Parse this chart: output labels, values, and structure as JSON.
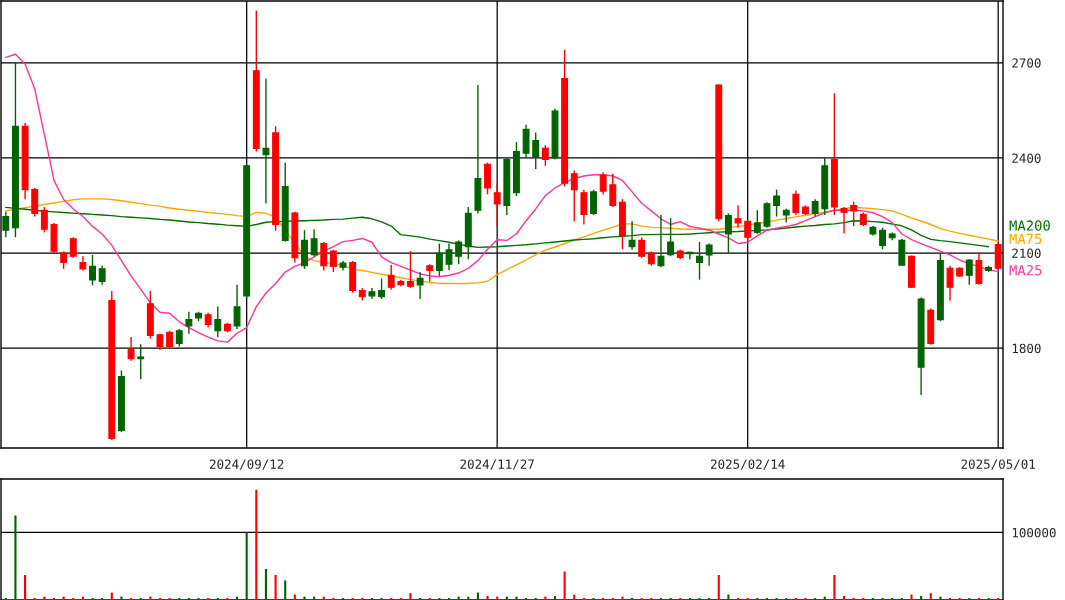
{
  "chart_data": [
    {
      "type": "candlestick",
      "categories": [
        null,
        null,
        null,
        null,
        null,
        null,
        null,
        null,
        null,
        null,
        null,
        null,
        null,
        null,
        null,
        null,
        null,
        null,
        null,
        null,
        null,
        null,
        null,
        null,
        null,
        "2024/09/12",
        null,
        null,
        null,
        null,
        null,
        null,
        null,
        null,
        null,
        null,
        null,
        null,
        null,
        null,
        null,
        null,
        null,
        null,
        null,
        null,
        null,
        null,
        null,
        null,
        null,
        "2024/11/27",
        null,
        null,
        null,
        null,
        null,
        null,
        null,
        null,
        null,
        null,
        null,
        null,
        null,
        null,
        null,
        null,
        null,
        null,
        null,
        null,
        null,
        null,
        null,
        null,
        null,
        "2025/02/14",
        null,
        null,
        null,
        null,
        null,
        null,
        null,
        null,
        null,
        null,
        null,
        null,
        null,
        null,
        null,
        null,
        null,
        null,
        null,
        null,
        null,
        null,
        null,
        null,
        null,
        "2025/05/01"
      ],
      "ohlc": [
        [
          2172,
          2230,
          2150,
          2215
        ],
        [
          2180,
          2700,
          2150,
          2500
        ],
        [
          2500,
          2510,
          2270,
          2300
        ],
        [
          2300,
          2305,
          2215,
          2225
        ],
        [
          2235,
          2245,
          2165,
          2175
        ],
        [
          2190,
          2195,
          2100,
          2106
        ],
        [
          2100,
          2105,
          2050,
          2070
        ],
        [
          2145,
          2150,
          2085,
          2090
        ],
        [
          2070,
          2090,
          2045,
          2050
        ],
        [
          2015,
          2094,
          1998,
          2058
        ],
        [
          2010,
          2060,
          2000,
          2050
        ],
        [
          1950,
          1980,
          1510,
          1515
        ],
        [
          1540,
          1730,
          1535,
          1710
        ],
        [
          1797,
          1835,
          1760,
          1767
        ],
        [
          1767,
          1812,
          1702,
          1772
        ],
        [
          1940,
          1980,
          1830,
          1840
        ],
        [
          1842,
          1845,
          1795,
          1805
        ],
        [
          1850,
          1855,
          1800,
          1805
        ],
        [
          1815,
          1860,
          1805,
          1855
        ],
        [
          1870,
          1915,
          1845,
          1890
        ],
        [
          1895,
          1915,
          1885,
          1910
        ],
        [
          1905,
          1912,
          1865,
          1875
        ],
        [
          1855,
          1931,
          1835,
          1890
        ],
        [
          1875,
          1880,
          1850,
          1855
        ],
        [
          1870,
          2000,
          1860,
          1930
        ],
        [
          1965,
          2380,
          1960,
          2375
        ],
        [
          2675,
          2865,
          2420,
          2430
        ],
        [
          2410,
          2650,
          2257,
          2430
        ],
        [
          2479,
          2500,
          2170,
          2190
        ],
        [
          2140,
          2385,
          2136,
          2310
        ],
        [
          2226,
          2230,
          2070,
          2085
        ],
        [
          2060,
          2172,
          2050,
          2140
        ],
        [
          2095,
          2175,
          2090,
          2145
        ],
        [
          2130,
          2135,
          2045,
          2060
        ],
        [
          2106,
          2110,
          2040,
          2058
        ],
        [
          2055,
          2075,
          2045,
          2068
        ],
        [
          2070,
          2075,
          1975,
          1982
        ],
        [
          1982,
          1990,
          1950,
          1962
        ],
        [
          1965,
          1990,
          1955,
          1978
        ],
        [
          1962,
          2020,
          1955,
          1982
        ],
        [
          2030,
          2063,
          1985,
          1992
        ],
        [
          2010,
          2015,
          1995,
          2000
        ],
        [
          2010,
          2106,
          1990,
          1995
        ],
        [
          1999,
          2040,
          1955,
          2020
        ],
        [
          2060,
          2065,
          2010,
          2045
        ],
        [
          2045,
          2130,
          2028,
          2100
        ],
        [
          2065,
          2130,
          2046,
          2110
        ],
        [
          2090,
          2140,
          2065,
          2135
        ],
        [
          2120,
          2245,
          2080,
          2225
        ],
        [
          2235,
          2630,
          2225,
          2335
        ],
        [
          2380,
          2385,
          2285,
          2305
        ],
        [
          2290,
          2320,
          2184,
          2255
        ],
        [
          2250,
          2400,
          2220,
          2395
        ],
        [
          2290,
          2450,
          2280,
          2420
        ],
        [
          2415,
          2505,
          2400,
          2490
        ],
        [
          2405,
          2480,
          2365,
          2455
        ],
        [
          2430,
          2440,
          2375,
          2395
        ],
        [
          2400,
          2555,
          2395,
          2548
        ],
        [
          2650,
          2741,
          2310,
          2320
        ],
        [
          2350,
          2360,
          2200,
          2300
        ],
        [
          2290,
          2300,
          2190,
          2222
        ],
        [
          2225,
          2300,
          2220,
          2293
        ],
        [
          2345,
          2355,
          2285,
          2295
        ],
        [
          2315,
          2350,
          2245,
          2250
        ],
        [
          2260,
          2270,
          2112,
          2155
        ],
        [
          2120,
          2200,
          2110,
          2140
        ],
        [
          2140,
          2150,
          2085,
          2090
        ],
        [
          2100,
          2105,
          2060,
          2066
        ],
        [
          2060,
          2220,
          2055,
          2090
        ],
        [
          2095,
          2210,
          2090,
          2135
        ],
        [
          2106,
          2110,
          2080,
          2086
        ],
        [
          2098,
          2104,
          2080,
          2102
        ],
        [
          2070,
          2135,
          2016,
          2090
        ],
        [
          2094,
          2130,
          2060,
          2125
        ],
        [
          2630,
          2632,
          2200,
          2208
        ],
        [
          2160,
          2225,
          2100,
          2218
        ],
        [
          2208,
          2250,
          2180,
          2195
        ],
        [
          2200,
          2205,
          2137,
          2150
        ],
        [
          2165,
          2235,
          2160,
          2195
        ],
        [
          2185,
          2260,
          2180,
          2255
        ],
        [
          2250,
          2300,
          2215,
          2280
        ],
        [
          2220,
          2240,
          2196,
          2235
        ],
        [
          2285,
          2297,
          2220,
          2228
        ],
        [
          2245,
          2250,
          2220,
          2225
        ],
        [
          2225,
          2270,
          2215,
          2262
        ],
        [
          2240,
          2400,
          2220,
          2375
        ],
        [
          2395,
          2604,
          2220,
          2245
        ],
        [
          2240,
          2245,
          2162,
          2228
        ],
        [
          2250,
          2262,
          2185,
          2233
        ],
        [
          2222,
          2228,
          2185,
          2190
        ],
        [
          2160,
          2185,
          2155,
          2181
        ],
        [
          2124,
          2180,
          2112,
          2172
        ],
        [
          2148,
          2165,
          2140,
          2160
        ],
        [
          2062,
          2145,
          2060,
          2140
        ],
        [
          2090,
          2092,
          1990,
          1992
        ],
        [
          1740,
          1960,
          1652,
          1955
        ],
        [
          1919,
          1925,
          1811,
          1815
        ],
        [
          1890,
          2100,
          1885,
          2076
        ],
        [
          2052,
          2060,
          1950,
          1992
        ],
        [
          2052,
          2055,
          2025,
          2028
        ],
        [
          2030,
          2080,
          2000,
          2078
        ],
        [
          2076,
          2100,
          2000,
          2004
        ],
        [
          2045,
          2060,
          2040,
          2054
        ],
        [
          2127,
          2130,
          2050,
          2052
        ]
      ],
      "colors": [
        "#006400",
        "#006400",
        "#ff0000",
        "#ff0000",
        "#ff0000",
        "#ff0000",
        "#ff0000",
        "#ff0000",
        "#ff0000",
        "#006400",
        "#006400",
        "#ff0000",
        "#006400",
        "#ff0000",
        "#006400",
        "#ff0000",
        "#ff0000",
        "#ff0000",
        "#006400",
        "#006400",
        "#006400",
        "#ff0000",
        "#006400",
        "#ff0000",
        "#006400",
        "#006400",
        "#ff0000",
        "#006400",
        "#ff0000",
        "#006400",
        "#ff0000",
        "#006400",
        "#006400",
        "#ff0000",
        "#ff0000",
        "#006400",
        "#ff0000",
        "#ff0000",
        "#006400",
        "#006400",
        "#ff0000",
        "#ff0000",
        "#ff0000",
        "#006400",
        "#ff0000",
        "#006400",
        "#006400",
        "#006400",
        "#006400",
        "#006400",
        "#ff0000",
        "#ff0000",
        "#006400",
        "#006400",
        "#006400",
        "#006400",
        "#ff0000",
        "#006400",
        "#ff0000",
        "#ff0000",
        "#ff0000",
        "#006400",
        "#ff0000",
        "#ff0000",
        "#ff0000",
        "#006400",
        "#ff0000",
        "#ff0000",
        "#006400",
        "#006400",
        "#ff0000",
        "#006400",
        "#006400",
        "#006400",
        "#ff0000",
        "#006400",
        "#ff0000",
        "#ff0000",
        "#006400",
        "#006400",
        "#006400",
        "#006400",
        "#ff0000",
        "#ff0000",
        "#006400",
        "#006400",
        "#ff0000",
        "#ff0000",
        "#ff0000",
        "#ff0000",
        "#006400",
        "#006400",
        "#006400",
        "#006400",
        "#ff0000",
        "#006400",
        "#ff0000",
        "#006400",
        "#ff0000",
        "#ff0000",
        "#006400",
        "#ff0000",
        "#006400",
        "#ff0000"
      ],
      "series": [
        {
          "name": "MA75",
          "type": "line",
          "color": "#ffa500",
          "values": [
            2233,
            2238,
            2243,
            2248,
            2253,
            2258,
            2263,
            2268,
            2271,
            2271,
            2271,
            2269,
            2265,
            2260,
            2256,
            2251,
            2247,
            2242,
            2238,
            2235,
            2232,
            2228,
            2225,
            2222,
            2218,
            2215,
            2228,
            2225,
            2213,
            null,
            null,
            2090,
            2076,
            2071,
            2067,
            2060,
            2050,
            2045,
            2039,
            2033,
            2028,
            2022,
            2016,
            2012,
            2007,
            2004,
            2004,
            2004,
            2004,
            2006,
            2011,
            2032,
            2048,
            2063,
            2078,
            2095,
            2109,
            2119,
            2130,
            2141,
            2151,
            2162,
            2172,
            2181,
            2192,
            2192,
            2185,
            2181,
            2180,
            2178,
            2176,
            2175,
            2175,
            2175,
            2175,
            2179,
            2184,
            2188,
            2193,
            2198,
            2204,
            2209,
            2214,
            2219,
            2224,
            2229,
            2235,
            2240,
            2245,
            2242,
            2240,
            2237,
            2233,
            2222,
            2211,
            2201,
            2190,
            2177,
            2169,
            2162,
            2156,
            2150,
            2144,
            2138
          ]
        },
        {
          "name": "MA200",
          "type": "line",
          "color": "#007000",
          "values": [
            2244,
            2241,
            2238,
            2235,
            2232,
            2230,
            2228,
            2226,
            2224,
            2222,
            2220,
            2218,
            2215,
            2213,
            2211,
            2209,
            2206,
            2204,
            2201,
            2198,
            2196,
            2193,
            2191,
            2188,
            2186,
            2184,
            2190,
            2197,
            2199,
            2200,
            2201,
            2202,
            2203,
            2204,
            2206,
            2207,
            2210,
            2213,
            2208,
            2198,
            2185,
            2158,
            2154,
            2150,
            2144,
            2139,
            2134,
            2128,
            2122,
            2118,
            2119,
            2120,
            2122,
            2124,
            2126,
            2129,
            2132,
            2135,
            2138,
            2141,
            2143,
            2145,
            2148,
            2151,
            2153,
            2155,
            2158,
            2158,
            2159,
            2159,
            2159,
            2160,
            2162,
            2164,
            2166,
            2167,
            2168,
            2170,
            2171,
            2173,
            2176,
            2179,
            2182,
            2185,
            2187,
            2190,
            2192,
            2196,
            2202,
            2201,
            2199,
            2197,
            2191,
            2186,
            2173,
            2156,
            2143,
            2139,
            2136,
            2132,
            2128,
            2124,
            2120,
            null
          ]
        },
        {
          "name": "MA25",
          "type": "line",
          "color": "#ff3399",
          "values": [
            2717,
            2727,
            2696,
            2618,
            2474,
            2329,
            2269,
            2239,
            2215,
            2184,
            2160,
            2124,
            2076,
            2028,
            1986,
            1943,
            1913,
            1910,
            1883,
            1865,
            1849,
            1835,
            1823,
            1819,
            1847,
            1865,
            1931,
            1974,
            2004,
            2040,
            2058,
            2070,
            2088,
            2106,
            2120,
            2136,
            2140,
            2146,
            2134,
            2088,
            2070,
            2058,
            2046,
            2034,
            2028,
            2025,
            2030,
            2037,
            2052,
            2076,
            2112,
            2142,
            2140,
            2160,
            2202,
            2239,
            2281,
            2305,
            2323,
            2335,
            2343,
            2347,
            2347,
            2343,
            2329,
            2293,
            2257,
            2233,
            2208,
            2190,
            2199,
            2184,
            2178,
            2172,
            2160,
            2148,
            2130,
            2134,
            2154,
            2172,
            2178,
            2184,
            2190,
            2202,
            2215,
            2227,
            2235,
            2235,
            2235,
            2233,
            2227,
            2215,
            2196,
            2160,
            2142,
            2130,
            2118,
            2106,
            2094,
            2078,
            2066,
            2058,
            2046,
            2042
          ]
        }
      ],
      "ylim": [
        1485,
        2895
      ],
      "yticks": [
        1800,
        2100,
        2400,
        2700
      ],
      "grid": true
    },
    {
      "type": "bar",
      "categories": [
        null,
        null,
        null,
        null,
        null,
        null,
        null,
        null,
        null,
        null,
        null,
        null,
        null,
        null,
        null,
        null,
        null,
        null,
        null,
        null,
        null,
        null,
        null,
        null,
        null,
        "2024/09/12",
        null,
        null,
        null,
        null,
        null,
        null,
        null,
        null,
        null,
        null,
        null,
        null,
        null,
        null,
        null,
        null,
        null,
        null,
        null,
        null,
        null,
        null,
        null,
        null,
        null,
        "2024/11/27",
        null,
        null,
        null,
        null,
        null,
        null,
        null,
        null,
        null,
        null,
        null,
        null,
        null,
        null,
        null,
        null,
        null,
        null,
        null,
        null,
        null,
        null,
        null,
        null,
        null,
        "2025/02/14",
        null,
        null,
        null,
        null,
        null,
        null,
        null,
        null,
        null,
        null,
        null,
        null,
        null,
        null,
        null,
        null,
        null,
        null,
        null,
        null,
        null,
        null,
        null,
        null,
        null,
        "2025/05/01"
      ],
      "values": [
        3000,
        125000,
        37000,
        3000,
        5000,
        3000,
        5000,
        3000,
        5000,
        3000,
        3000,
        11000,
        5000,
        3000,
        3000,
        5000,
        3000,
        3000,
        3000,
        3000,
        3000,
        3000,
        3000,
        3000,
        5000,
        100000,
        163000,
        46000,
        37000,
        29000,
        8000,
        5000,
        5000,
        5000,
        3000,
        3000,
        3000,
        3000,
        3000,
        3000,
        3000,
        3000,
        10000,
        3000,
        3000,
        3000,
        3000,
        5000,
        5000,
        11000,
        6000,
        5000,
        5000,
        5000,
        3000,
        3000,
        5000,
        6000,
        42000,
        8000,
        3000,
        3000,
        3000,
        3000,
        5000,
        3000,
        3000,
        3000,
        3000,
        3000,
        3000,
        3000,
        3000,
        3000,
        37000,
        8000,
        3000,
        3000,
        3000,
        3000,
        3000,
        3000,
        3000,
        3000,
        3000,
        5000,
        37000,
        6000,
        3000,
        3000,
        3000,
        3000,
        3000,
        3000,
        8000,
        6000,
        10000,
        5000,
        3000,
        3000,
        3000,
        3000,
        3000,
        3000
      ],
      "colors": [
        "#006400",
        "#006400",
        "#ff0000",
        "#ff0000",
        "#ff0000",
        "#ff0000",
        "#ff0000",
        "#ff0000",
        "#ff0000",
        "#006400",
        "#006400",
        "#ff0000",
        "#006400",
        "#ff0000",
        "#006400",
        "#ff0000",
        "#ff0000",
        "#ff0000",
        "#006400",
        "#006400",
        "#006400",
        "#ff0000",
        "#006400",
        "#ff0000",
        "#006400",
        "#006400",
        "#ff0000",
        "#006400",
        "#ff0000",
        "#006400",
        "#ff0000",
        "#006400",
        "#006400",
        "#ff0000",
        "#ff0000",
        "#006400",
        "#ff0000",
        "#ff0000",
        "#006400",
        "#006400",
        "#ff0000",
        "#ff0000",
        "#ff0000",
        "#006400",
        "#ff0000",
        "#006400",
        "#006400",
        "#006400",
        "#006400",
        "#006400",
        "#ff0000",
        "#ff0000",
        "#006400",
        "#006400",
        "#006400",
        "#006400",
        "#ff0000",
        "#006400",
        "#ff0000",
        "#ff0000",
        "#ff0000",
        "#006400",
        "#ff0000",
        "#ff0000",
        "#ff0000",
        "#006400",
        "#ff0000",
        "#ff0000",
        "#006400",
        "#006400",
        "#ff0000",
        "#006400",
        "#006400",
        "#006400",
        "#ff0000",
        "#006400",
        "#ff0000",
        "#ff0000",
        "#006400",
        "#006400",
        "#006400",
        "#006400",
        "#ff0000",
        "#ff0000",
        "#006400",
        "#006400",
        "#ff0000",
        "#ff0000",
        "#ff0000",
        "#ff0000",
        "#006400",
        "#006400",
        "#006400",
        "#006400",
        "#ff0000",
        "#006400",
        "#ff0000",
        "#006400",
        "#ff0000",
        "#ff0000",
        "#006400",
        "#ff0000",
        "#006400",
        "#ff0000"
      ],
      "ylim": [
        0,
        179000
      ],
      "yticks": [
        100000
      ],
      "grid": "y",
      "tick_labels": "y"
    }
  ]
}
